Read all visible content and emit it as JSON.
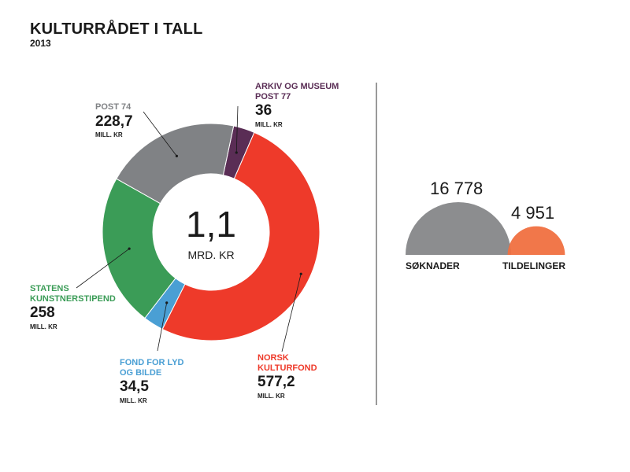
{
  "header": {
    "title": "KULTURRÅDET I TALL",
    "subtitle": "2013"
  },
  "chart_data": [
    {
      "type": "pie",
      "variant": "donut",
      "center_value": "1,1",
      "center_unit": "MRD. KR",
      "unit": "MILL. KR",
      "segments": [
        {
          "name": "ARKIV OG MUSEUM POST 77",
          "value": 36,
          "value_label": "36",
          "color": "#5a2d55"
        },
        {
          "name": "NORSK KULTURFOND",
          "value": 577.2,
          "value_label": "577,2",
          "color": "#ee3a2a"
        },
        {
          "name": "FOND FOR LYD OG BILDE",
          "value": 34.5,
          "value_label": "34,5",
          "color": "#4a9fd4"
        },
        {
          "name": "STATENS KUNSTNERSTIPEND",
          "value": 258,
          "value_label": "258",
          "color": "#3b9c57"
        },
        {
          "name": "POST 74",
          "value": 228.7,
          "value_label": "228,7",
          "color": "#808285"
        }
      ]
    },
    {
      "type": "area",
      "variant": "proportional-semicircles",
      "items": [
        {
          "name": "SØKNADER",
          "value": 16778,
          "value_label": "16 778",
          "color": "#8c8d8f"
        },
        {
          "name": "TILDELINGER",
          "value": 4951,
          "value_label": "4 951",
          "color": "#f07040"
        }
      ]
    }
  ],
  "labels": {
    "arkiv_name": "ARKIV OG MUSEUM POST 77",
    "post74_name": "POST 74",
    "statens_name": "STATENS KUNSTNERSTIPEND",
    "fond_name": "FOND FOR LYD OG BILDE",
    "norsk_name": "NORSK KULTURFOND"
  }
}
